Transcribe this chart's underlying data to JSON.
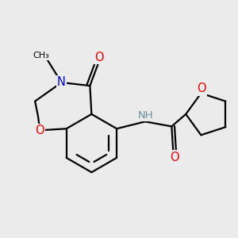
{
  "bg_color": "#ebebeb",
  "bond_color": "#000000",
  "bond_width": 1.6,
  "atom_colors": {
    "N": "#0000ee",
    "O": "#ee0000",
    "H": "#6b8e9f",
    "C": "#000000"
  },
  "font_size": 9.5
}
